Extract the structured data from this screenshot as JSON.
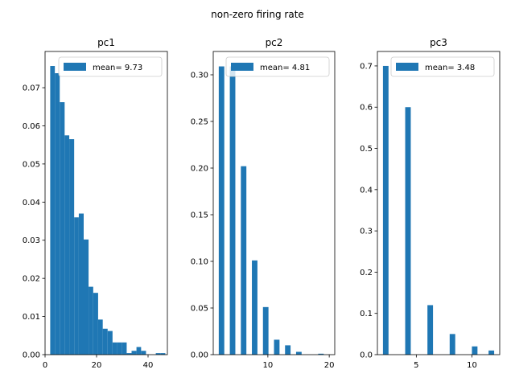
{
  "suptitle": "non-zero firing rate",
  "colors": {
    "bar": "#1f77b4",
    "axis": "#000000",
    "legend_border": "#cccccc"
  },
  "chart_data": [
    {
      "type": "bar",
      "title": "pc1",
      "legend": "mean= 9.73",
      "legend_position": "top-right",
      "xlim": [
        0,
        47.5
      ],
      "ylim": [
        0,
        0.0795
      ],
      "xticks": [
        0,
        20,
        40
      ],
      "yticks": [
        0.0,
        0.01,
        0.02,
        0.03,
        0.04,
        0.05,
        0.06,
        0.07
      ],
      "ytick_labels": [
        "0.00",
        "0.01",
        "0.02",
        "0.03",
        "0.04",
        "0.05",
        "0.06",
        "0.07"
      ],
      "bins": [
        {
          "x0": 2.0,
          "x1": 3.8,
          "value": 0.0757
        },
        {
          "x0": 3.8,
          "x1": 5.7,
          "value": 0.0738
        },
        {
          "x0": 5.7,
          "x1": 7.6,
          "value": 0.0662
        },
        {
          "x0": 7.6,
          "x1": 9.4,
          "value": 0.0575
        },
        {
          "x0": 9.4,
          "x1": 11.3,
          "value": 0.0565
        },
        {
          "x0": 11.3,
          "x1": 13.1,
          "value": 0.036
        },
        {
          "x0": 13.1,
          "x1": 15.0,
          "value": 0.037
        },
        {
          "x0": 15.0,
          "x1": 16.9,
          "value": 0.0302
        },
        {
          "x0": 16.9,
          "x1": 18.7,
          "value": 0.0178
        },
        {
          "x0": 18.7,
          "x1": 20.6,
          "value": 0.0162
        },
        {
          "x0": 20.6,
          "x1": 22.4,
          "value": 0.0092
        },
        {
          "x0": 22.4,
          "x1": 24.3,
          "value": 0.0068
        },
        {
          "x0": 24.3,
          "x1": 26.2,
          "value": 0.0062
        },
        {
          "x0": 26.2,
          "x1": 28.0,
          "value": 0.0032
        },
        {
          "x0": 28.0,
          "x1": 29.9,
          "value": 0.0032
        },
        {
          "x0": 29.9,
          "x1": 31.7,
          "value": 0.0032
        },
        {
          "x0": 31.7,
          "x1": 33.6,
          "value": 0.0004
        },
        {
          "x0": 33.6,
          "x1": 35.5,
          "value": 0.001
        },
        {
          "x0": 35.5,
          "x1": 37.3,
          "value": 0.002
        },
        {
          "x0": 37.3,
          "x1": 39.2,
          "value": 0.001
        },
        {
          "x0": 43.0,
          "x1": 44.9,
          "value": 0.0004
        },
        {
          "x0": 44.9,
          "x1": 46.7,
          "value": 0.0004
        }
      ]
    },
    {
      "type": "bar",
      "title": "pc2",
      "legend": "mean= 4.81",
      "legend_position": "top-right",
      "xlim": [
        1.1,
        20.9
      ],
      "ylim": [
        0,
        0.325
      ],
      "xticks": [
        10,
        20
      ],
      "yticks": [
        0.0,
        0.05,
        0.1,
        0.15,
        0.2,
        0.25,
        0.3
      ],
      "ytick_labels": [
        "0.00",
        "0.05",
        "0.10",
        "0.15",
        "0.20",
        "0.25",
        "0.30"
      ],
      "bins": [
        {
          "x0": 2.0,
          "x1": 2.9,
          "value": 0.309
        },
        {
          "x0": 3.8,
          "x1": 4.7,
          "value": 0.309
        },
        {
          "x0": 5.6,
          "x1": 6.5,
          "value": 0.202
        },
        {
          "x0": 7.4,
          "x1": 8.3,
          "value": 0.101
        },
        {
          "x0": 9.2,
          "x1": 10.1,
          "value": 0.051
        },
        {
          "x0": 11.0,
          "x1": 11.9,
          "value": 0.016
        },
        {
          "x0": 12.8,
          "x1": 13.7,
          "value": 0.01
        },
        {
          "x0": 14.6,
          "x1": 15.5,
          "value": 0.003
        },
        {
          "x0": 18.2,
          "x1": 19.1,
          "value": 0.001
        }
      ]
    },
    {
      "type": "bar",
      "title": "pc3",
      "legend": "mean= 3.48",
      "legend_position": "top-right",
      "xlim": [
        1.5,
        12.5
      ],
      "ylim": [
        0,
        0.735
      ],
      "xticks": [
        5,
        10
      ],
      "yticks": [
        0.0,
        0.1,
        0.2,
        0.3,
        0.4,
        0.5,
        0.6,
        0.7
      ],
      "ytick_labels": [
        "0.0",
        "0.1",
        "0.2",
        "0.3",
        "0.4",
        "0.5",
        "0.6",
        "0.7"
      ],
      "bins": [
        {
          "x0": 2.0,
          "x1": 2.5,
          "value": 0.7
        },
        {
          "x0": 4.0,
          "x1": 4.5,
          "value": 0.6
        },
        {
          "x0": 6.0,
          "x1": 6.5,
          "value": 0.12
        },
        {
          "x0": 8.0,
          "x1": 8.5,
          "value": 0.05
        },
        {
          "x0": 10.0,
          "x1": 10.5,
          "value": 0.02
        },
        {
          "x0": 11.5,
          "x1": 12.0,
          "value": 0.01
        }
      ]
    }
  ]
}
